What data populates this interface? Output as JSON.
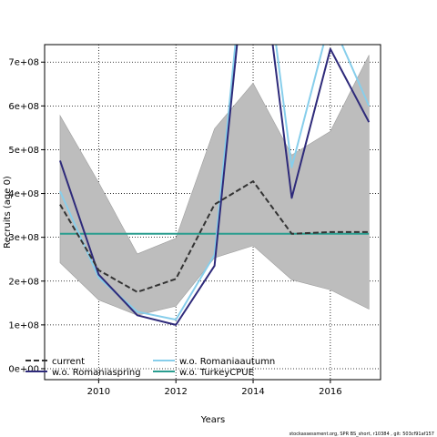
{
  "chart_data": {
    "type": "line",
    "xlabel": "Years",
    "ylabel": "Recruits (age 0)",
    "xlim": [
      2008.6,
      2017.3
    ],
    "ylim": [
      -25000000,
      740000000
    ],
    "xticks": [
      2010,
      2012,
      2014,
      2016
    ],
    "xtick_labels": [
      "2010",
      "2012",
      "2014",
      "2016"
    ],
    "yticks": [
      0,
      100000000,
      200000000,
      300000000,
      400000000,
      500000000,
      600000000,
      700000000
    ],
    "ytick_labels": [
      "0e+00",
      "1e+08",
      "2e+08",
      "3e+08",
      "4e+08",
      "5e+08",
      "6e+08",
      "7e+08"
    ],
    "grid": true,
    "legend_placement": "bottom-left",
    "x": [
      2009,
      2010,
      2011,
      2012,
      2013,
      2014,
      2015,
      2016,
      2017
    ],
    "band": {
      "lower": [
        242000000,
        157000000,
        122000000,
        143000000,
        253000000,
        281000000,
        203000000,
        180000000,
        136000000
      ],
      "upper": [
        578000000,
        425000000,
        262000000,
        298000000,
        548000000,
        652000000,
        488000000,
        542000000,
        716000000
      ],
      "color": "#bdbdbd"
    },
    "series": [
      {
        "name": "current",
        "values": [
          375000000,
          225000000,
          175000000,
          205000000,
          375000000,
          428000000,
          308000000,
          312000000,
          312000000
        ],
        "color": "#333333",
        "dash": "6,3"
      },
      {
        "name": "w.o. Romaniaautumn",
        "values": [
          405000000,
          208000000,
          130000000,
          112000000,
          260000000,
          1150000000,
          460000000,
          800000000,
          600000000
        ],
        "color": "#87ceeb",
        "dash": ""
      },
      {
        "name": "w.o. Romaniaspring",
        "values": [
          475000000,
          215000000,
          122000000,
          100000000,
          235000000,
          1100000000,
          390000000,
          730000000,
          563000000
        ],
        "color": "#2e2a7a",
        "dash": ""
      },
      {
        "name": "w.o. TurkeyCPUE",
        "values": [
          308000000,
          308000000,
          308000000,
          308000000,
          308000000,
          308000000,
          308000000,
          308000000,
          308000000
        ],
        "color": "#2a9d8f",
        "dash": ""
      }
    ]
  },
  "legend": {
    "items": [
      {
        "label": "current"
      },
      {
        "label": "w.o. Romaniaspring"
      },
      {
        "label": "w.o. Romaniaautumn"
      },
      {
        "label": "w.o. TurkeyCPUE"
      }
    ]
  },
  "footer": "stockassessment.org, SPR BS_short, r10384 , git: 503cf91af157"
}
